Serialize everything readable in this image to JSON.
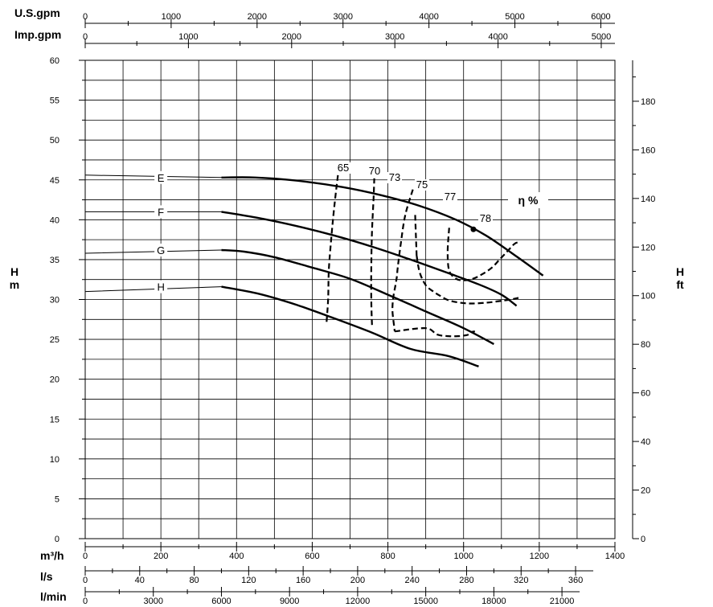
{
  "chart_data": {
    "type": "line",
    "title": "",
    "x_axes": {
      "primary": {
        "unit": "m³/h",
        "ticks": [
          0,
          200,
          400,
          600,
          800,
          1000,
          1200,
          1400
        ],
        "range": [
          0,
          1400
        ]
      },
      "ls": {
        "unit": "l/s",
        "ticks": [
          0,
          40,
          80,
          120,
          160,
          200,
          240,
          280,
          320,
          360
        ]
      },
      "lmin": {
        "unit": "l/min",
        "ticks": [
          0,
          3000,
          6000,
          9000,
          12000,
          15000,
          18000,
          21000
        ]
      },
      "usgpm": {
        "unit": "U.S.gpm",
        "ticks": [
          0,
          1000,
          2000,
          3000,
          4000,
          5000,
          6000
        ]
      },
      "impgpm": {
        "unit": "Imp.gpm",
        "ticks": [
          0,
          1000,
          2000,
          3000,
          4000,
          5000
        ]
      }
    },
    "y_axes": {
      "left": {
        "unit_line1": "H",
        "unit_line2": "m",
        "ticks": [
          0,
          5,
          10,
          15,
          20,
          25,
          30,
          35,
          40,
          45,
          50,
          55,
          60
        ],
        "range": [
          0,
          60
        ]
      },
      "right": {
        "unit_line1": "H",
        "unit_line2": "ft",
        "ticks": [
          0,
          20,
          40,
          60,
          80,
          100,
          120,
          140,
          160,
          180
        ]
      }
    },
    "grid": true,
    "series": [
      {
        "name": "E",
        "x": [
          360,
          450,
          560,
          680,
          780,
          880,
          980,
          1060,
          1140,
          1210
        ],
        "y": [
          45.3,
          45.3,
          44.9,
          44.1,
          43.1,
          41.8,
          40.0,
          38.0,
          35.4,
          33.0
        ]
      },
      {
        "name": "F",
        "x": [
          360,
          460,
          560,
          660,
          760,
          860,
          960,
          1040,
          1100,
          1140
        ],
        "y": [
          41.0,
          40.2,
          39.2,
          38.0,
          36.6,
          35.0,
          33.3,
          31.9,
          30.6,
          29.2
        ]
      },
      {
        "name": "G",
        "x": [
          360,
          420,
          500,
          600,
          700,
          800,
          900,
          1000,
          1080
        ],
        "y": [
          36.2,
          36.0,
          35.3,
          34.0,
          32.6,
          30.6,
          28.5,
          26.4,
          24.4
        ]
      },
      {
        "name": "H",
        "x": [
          360,
          460,
          560,
          660,
          760,
          860,
          960,
          1040
        ],
        "y": [
          31.6,
          30.7,
          29.3,
          27.6,
          25.8,
          23.8,
          22.9,
          21.6
        ]
      }
    ],
    "low_flow_tails": [
      {
        "series": "E",
        "x": [
          0,
          360
        ],
        "y": [
          45.6,
          45.3
        ]
      },
      {
        "series": "F",
        "x": [
          0,
          360
        ],
        "y": [
          41.0,
          41.0
        ]
      },
      {
        "series": "G",
        "x": [
          0,
          360
        ],
        "y": [
          35.8,
          36.2
        ]
      },
      {
        "series": "H",
        "x": [
          0,
          360
        ],
        "y": [
          31.0,
          31.6
        ]
      }
    ],
    "efficiency_title": "η %",
    "efficiency_contours": [
      {
        "label": "65",
        "x": [
          638,
          642,
          644,
          652,
          660,
          668
        ],
        "y": [
          27.2,
          30.0,
          33.8,
          38.6,
          42.4,
          45.6
        ]
      },
      {
        "label": "70",
        "x": [
          758,
          756,
          756,
          758,
          762,
          764
        ],
        "y": [
          26.8,
          30.0,
          34.0,
          38.6,
          42.6,
          45.2
        ]
      },
      {
        "label": "73",
        "x": [
          818,
          816,
          812,
          814,
          820,
          824,
          826,
          834,
          846,
          866,
          900,
          930,
          960,
          985,
          1005,
          1013,
          1020,
          1030
        ],
        "y": [
          26.0,
          26.8,
          28.6,
          30.2,
          31.8,
          33.0,
          34.0,
          37.0,
          40.6,
          43.8,
          26.4,
          25.6,
          25.4,
          25.4,
          25.5,
          25.6,
          25.9,
          26.0
        ]
      },
      {
        "label": "75",
        "x": [
          876,
          874,
          872,
          884,
          900,
          920,
          940,
          960,
          990,
          1020,
          1060,
          1095,
          1125,
          1145
        ],
        "y": [
          35.5,
          38.0,
          40.6,
          33.4,
          31.8,
          31.0,
          30.4,
          29.9,
          29.6,
          29.5,
          29.6,
          29.8,
          30.0,
          30.2
        ]
      },
      {
        "label": "77",
        "x": [
          962,
          958,
          962,
          980,
          1000,
          1025,
          1050,
          1075,
          1095,
          1115,
          1135,
          1150
        ],
        "y": [
          39.0,
          36.0,
          33.6,
          32.6,
          32.4,
          32.6,
          33.2,
          34.0,
          35.0,
          36.0,
          37.0,
          37.2
        ]
      }
    ],
    "best_efficiency_point": {
      "label": "78",
      "x": 1026,
      "y": 38.8
    }
  }
}
